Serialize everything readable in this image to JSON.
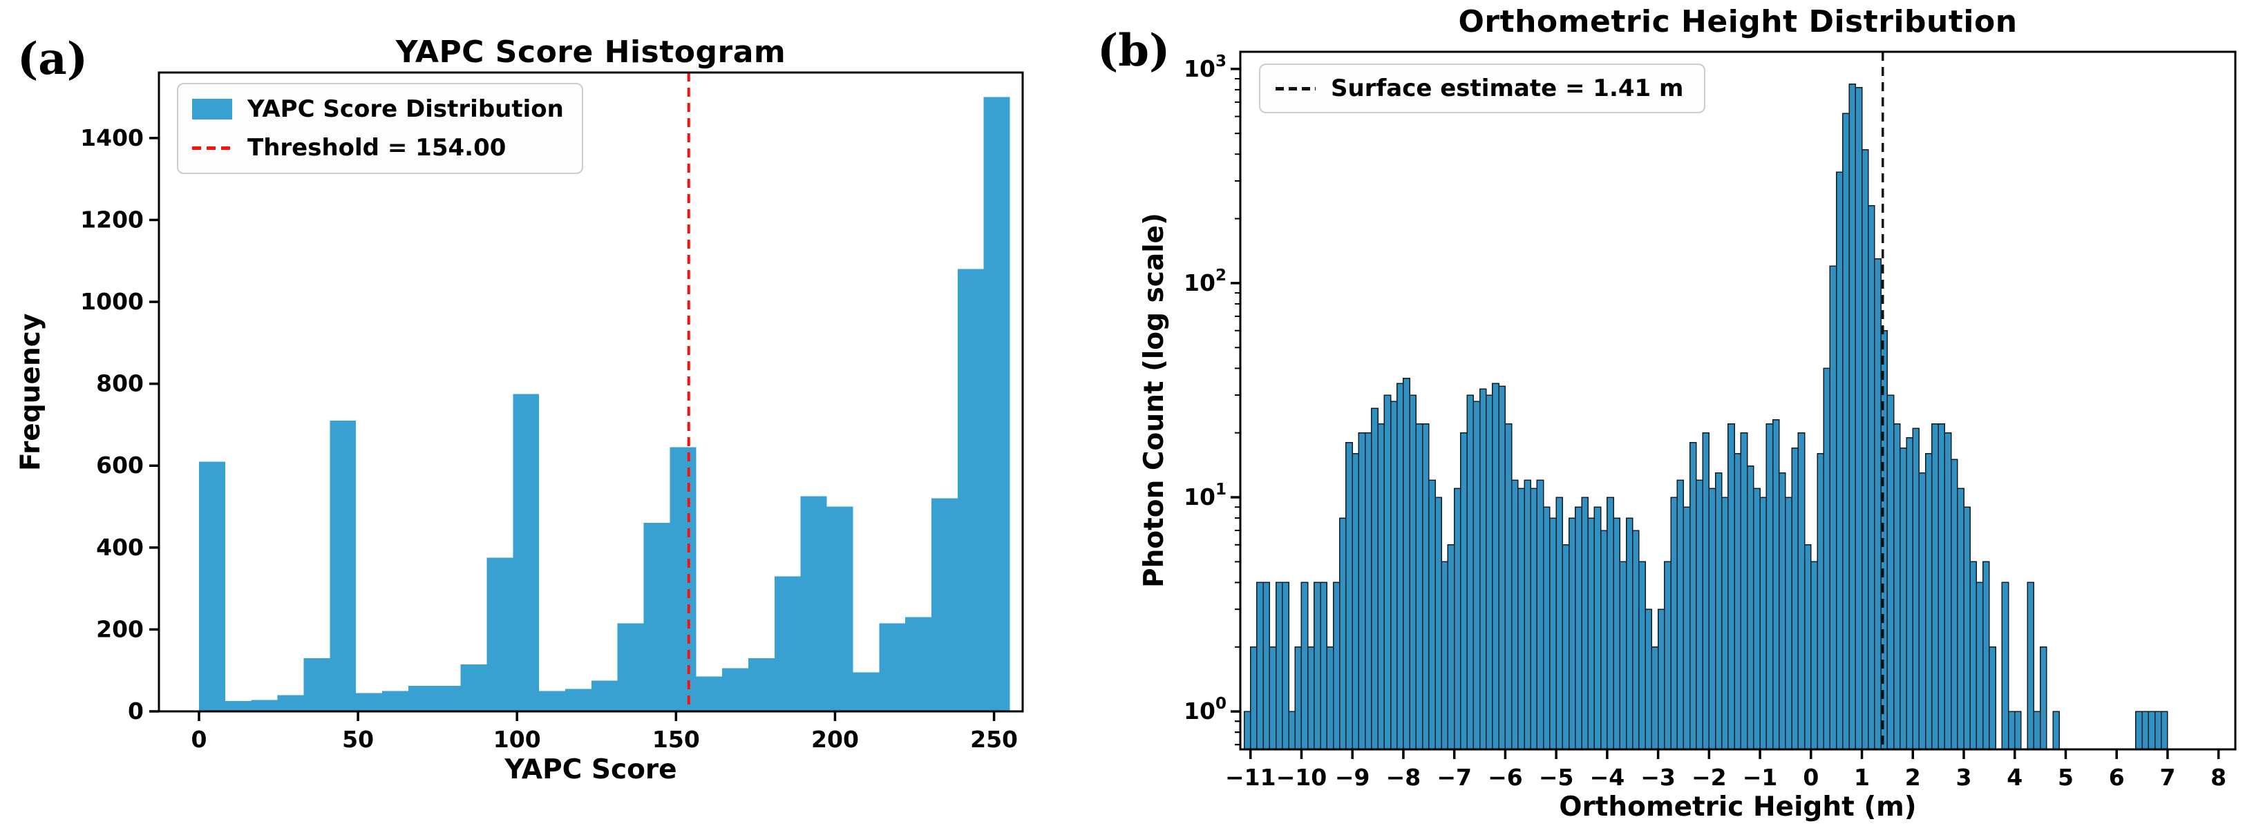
{
  "figure": {
    "background": "#ffffff",
    "panels": [
      {
        "label": "(a)"
      },
      {
        "label": "(b)"
      }
    ]
  },
  "chart_data": [
    {
      "id": "yapc-score-histogram",
      "type": "bar",
      "title": "YAPC Score Histogram",
      "xlabel": "YAPC Score",
      "ylabel": "Frequency",
      "bar_color": "#39a1d1",
      "bar_edge_color": "#39a1d1",
      "bar_edge_width": 0,
      "log_scale": false,
      "bin_start": 0,
      "bin_width": 8.2258,
      "values": [
        610,
        25,
        28,
        40,
        130,
        710,
        45,
        50,
        62,
        62,
        115,
        375,
        775,
        50,
        55,
        75,
        215,
        460,
        645,
        85,
        105,
        130,
        330,
        525,
        500,
        95,
        215,
        230,
        520,
        1080,
        1500
      ],
      "xlim": [
        -12.6,
        259
      ],
      "ylim": [
        0,
        1560
      ],
      "xtick_positions": [
        0,
        50,
        100,
        150,
        200,
        250
      ],
      "xtick_labels": [
        "0",
        "50",
        "100",
        "150",
        "200",
        "250"
      ],
      "ytick_positions": [
        0,
        200,
        400,
        600,
        800,
        1000,
        1200,
        1400
      ],
      "ytick_labels": [
        "0",
        "200",
        "400",
        "600",
        "800",
        "1000",
        "1200",
        "1400"
      ],
      "grid": false,
      "legend_position": "upper-left",
      "vline": {
        "x": 154,
        "color": "#fb100c",
        "style": "dashed",
        "width": 4
      },
      "legend": [
        {
          "type": "patch",
          "color": "#39a1d1",
          "label": "YAPC Score Distribution"
        },
        {
          "type": "dashed-line",
          "color": "#fb100c",
          "label": "Threshold = 154.00"
        }
      ]
    },
    {
      "id": "orthometric-height-distribution",
      "type": "bar",
      "title": "Orthometric Height Distribution",
      "xlabel": "Orthometric Height (m)",
      "ylabel": "Photon Count (log scale)",
      "bar_color": "#2f90c1",
      "bar_edge_color": "#0d1b22",
      "bar_edge_width": 1.5,
      "log_scale": true,
      "bin_start": -11.25,
      "bin_width": 0.125,
      "values": [
        0,
        1,
        2,
        4,
        4,
        2,
        4,
        4,
        1,
        2,
        4,
        2,
        4,
        4,
        2,
        4,
        8,
        18,
        16,
        20,
        20,
        26,
        22,
        30,
        28,
        34,
        36,
        30,
        22,
        22,
        12,
        10,
        5,
        6,
        11,
        20,
        30,
        28,
        32,
        30,
        34,
        33,
        22,
        12,
        11,
        12,
        11,
        12,
        9,
        8,
        10,
        6,
        8,
        9,
        10,
        8,
        9,
        7,
        10,
        8,
        5,
        8,
        7,
        5,
        3,
        2,
        3,
        5,
        10,
        12,
        9,
        18,
        12,
        20,
        11,
        13,
        10,
        22,
        16,
        20,
        14,
        11,
        10,
        22,
        23,
        13,
        10,
        17,
        20,
        6,
        5,
        16,
        40,
        120,
        330,
        620,
        850,
        820,
        420,
        230,
        130,
        60,
        30,
        22,
        17,
        19,
        21,
        13,
        16,
        22,
        22,
        20,
        15,
        11,
        9,
        5,
        4,
        5,
        2,
        0,
        4,
        1,
        1,
        0,
        4,
        1,
        2,
        0,
        1,
        0,
        0,
        0,
        0,
        0,
        0,
        0,
        0,
        0,
        0,
        0,
        0,
        1,
        1,
        1,
        1,
        1
      ],
      "xlim": [
        -11.2,
        8.33
      ],
      "ylim_exp": [
        -0.177,
        3.08
      ],
      "xtick_positions": [
        -11,
        -10,
        -9,
        -8,
        -7,
        -6,
        -5,
        -4,
        -3,
        -2,
        -1,
        0,
        1,
        2,
        3,
        4,
        5,
        6,
        7,
        8
      ],
      "xtick_labels": [
        "−11",
        "−10",
        "−9",
        "−8",
        "−7",
        "−6",
        "−5",
        "−4",
        "−3",
        "−2",
        "−1",
        "0",
        "1",
        "2",
        "3",
        "4",
        "5",
        "6",
        "7",
        "8"
      ],
      "ytick_exponents": [
        0,
        1,
        2,
        3
      ],
      "grid": false,
      "legend_position": "upper-left",
      "vline": {
        "x": 1.41,
        "color": "#111111",
        "style": "dashed",
        "width": 3.5
      },
      "legend": [
        {
          "type": "dashed-line",
          "color": "#111111",
          "label": "Surface estimate = 1.41 m"
        }
      ]
    }
  ]
}
